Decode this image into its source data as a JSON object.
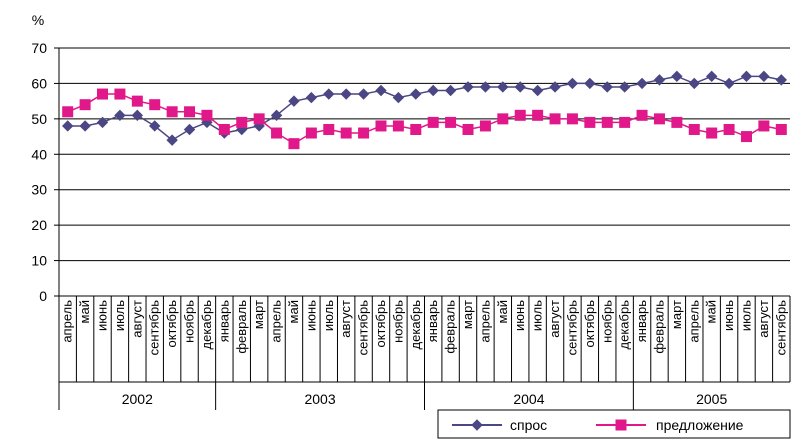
{
  "chart_data": {
    "type": "line",
    "ylabel": "%",
    "ylim": [
      0,
      70
    ],
    "yticks": [
      0,
      10,
      20,
      30,
      40,
      50,
      60,
      70
    ],
    "grid": true,
    "legend_position": "bottom-right",
    "categories": [
      "апрель",
      "май",
      "июнь",
      "июль",
      "август",
      "сентябрь",
      "октябрь",
      "ноябрь",
      "декабрь",
      "январь",
      "февраль",
      "март",
      "апрель",
      "май",
      "июнь",
      "июль",
      "август",
      "сентябрь",
      "октябрь",
      "ноябрь",
      "декабрь",
      "январь",
      "февраль",
      "март",
      "апрель",
      "май",
      "июнь",
      "июль",
      "август",
      "сентябрь",
      "октябрь",
      "ноябрь",
      "декабрь",
      "январь",
      "февраль",
      "март",
      "апрель",
      "май",
      "июнь",
      "июль",
      "август",
      "сентябрь"
    ],
    "years": [
      {
        "label": "2002",
        "count": 9
      },
      {
        "label": "2003",
        "count": 12
      },
      {
        "label": "2004",
        "count": 12
      },
      {
        "label": "2005",
        "count": 9
      }
    ],
    "series": [
      {
        "name": "спрос",
        "color": "#4b4784",
        "marker": "diamond",
        "values": [
          48,
          48,
          49,
          51,
          51,
          48,
          44,
          47,
          49,
          46,
          47,
          48,
          51,
          55,
          56,
          57,
          57,
          57,
          58,
          56,
          57,
          58,
          58,
          59,
          59,
          59,
          59,
          58,
          59,
          60,
          60,
          59,
          59,
          60,
          61,
          62,
          60,
          62,
          60,
          62,
          62,
          61
        ]
      },
      {
        "name": "предложение",
        "color": "#e0188a",
        "marker": "square",
        "values": [
          52,
          54,
          57,
          57,
          55,
          54,
          52,
          52,
          51,
          47,
          49,
          50,
          46,
          43,
          46,
          47,
          46,
          46,
          48,
          48,
          47,
          49,
          49,
          47,
          48,
          50,
          51,
          51,
          50,
          50,
          49,
          49,
          49,
          51,
          50,
          49,
          47,
          46,
          47,
          45,
          48,
          47
        ]
      }
    ]
  }
}
